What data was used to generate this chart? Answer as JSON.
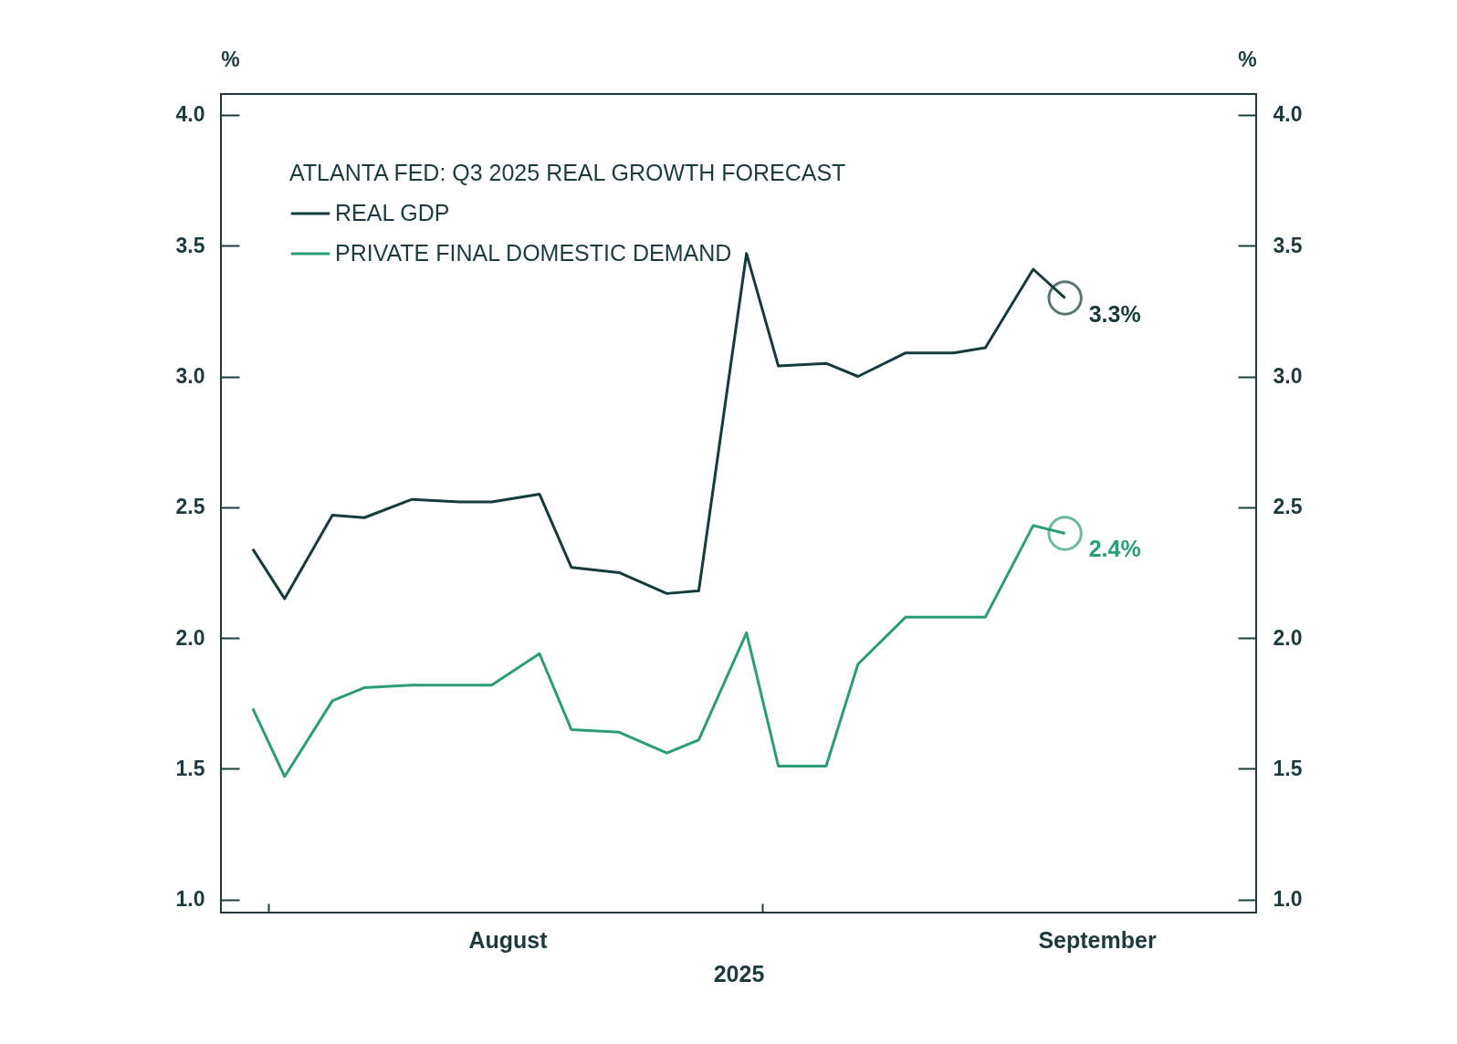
{
  "chart_data": {
    "type": "line",
    "legend_title": "ATLANTA FED: Q3 2025 REAL GROWTH FORECAST",
    "xlabel": "2025",
    "ylabel": "%",
    "y2label": "%",
    "legend": "top left",
    "grid": false,
    "x": [
      "2025-07-31",
      "2025-08-02",
      "2025-08-05",
      "2025-08-07",
      "2025-08-10",
      "2025-08-13",
      "2025-08-15",
      "2025-08-18",
      "2025-08-20",
      "2025-08-23",
      "2025-08-26",
      "2025-08-28",
      "2025-08-31",
      "2025-09-02",
      "2025-09-05",
      "2025-09-07",
      "2025-09-10",
      "2025-09-13",
      "2025-09-15",
      "2025-09-18",
      "2025-09-20"
    ],
    "xlim": [
      "2025-07-29",
      "2025-10-02"
    ],
    "xticks": [
      {
        "value": "2025-08-01",
        "label": null
      },
      {
        "value": "2025-08-16",
        "label": "August"
      },
      {
        "value": "2025-09-01",
        "label": null
      },
      {
        "value": "2025-09-22",
        "label": "September"
      }
    ],
    "ylim": [
      0.95,
      4.08
    ],
    "yticks": [
      {
        "value": 1,
        "label": "1.0"
      },
      {
        "value": 1.5,
        "label": "1.5"
      },
      {
        "value": 2,
        "label": "2.0"
      },
      {
        "value": 2.5,
        "label": "2.5"
      },
      {
        "value": 3,
        "label": "3.0"
      },
      {
        "value": 3.5,
        "label": "3.5"
      },
      {
        "value": 4,
        "label": "4.0"
      }
    ],
    "y2lim": [
      0.95,
      4.08
    ],
    "y2ticks": [
      {
        "value": 1,
        "label": "1.0"
      },
      {
        "value": 1.5,
        "label": "1.5"
      },
      {
        "value": 2,
        "label": "2.0"
      },
      {
        "value": 2.5,
        "label": "2.5"
      },
      {
        "value": 3,
        "label": "3.0"
      },
      {
        "value": 3.5,
        "label": "3.5"
      },
      {
        "value": 4,
        "label": "4.0"
      }
    ],
    "series": [
      {
        "name": "REAL GDP",
        "color": "#173a3c",
        "values": [
          2.34,
          2.15,
          2.47,
          2.46,
          2.53,
          2.52,
          2.52,
          2.55,
          2.27,
          2.25,
          2.17,
          2.18,
          3.47,
          3.04,
          3.05,
          3.0,
          3.09,
          3.09,
          3.11,
          3.41,
          3.3
        ],
        "value_labels": [
          null,
          null,
          null,
          null,
          null,
          null,
          null,
          null,
          null,
          null,
          null,
          null,
          null,
          null,
          null,
          null,
          null,
          null,
          null,
          null,
          "3.3%"
        ]
      },
      {
        "name": "PRIVATE FINAL DOMESTIC DEMAND",
        "color": "#2a9d78",
        "values": [
          1.73,
          1.47,
          1.76,
          1.81,
          1.82,
          1.82,
          1.82,
          1.94,
          1.65,
          1.64,
          1.56,
          1.61,
          2.02,
          1.51,
          1.51,
          1.9,
          2.08,
          2.08,
          2.08,
          2.43,
          2.4
        ],
        "value_labels": [
          null,
          null,
          null,
          null,
          null,
          null,
          null,
          null,
          null,
          null,
          null,
          null,
          null,
          null,
          null,
          null,
          null,
          null,
          null,
          null,
          "2.4%"
        ]
      }
    ]
  }
}
